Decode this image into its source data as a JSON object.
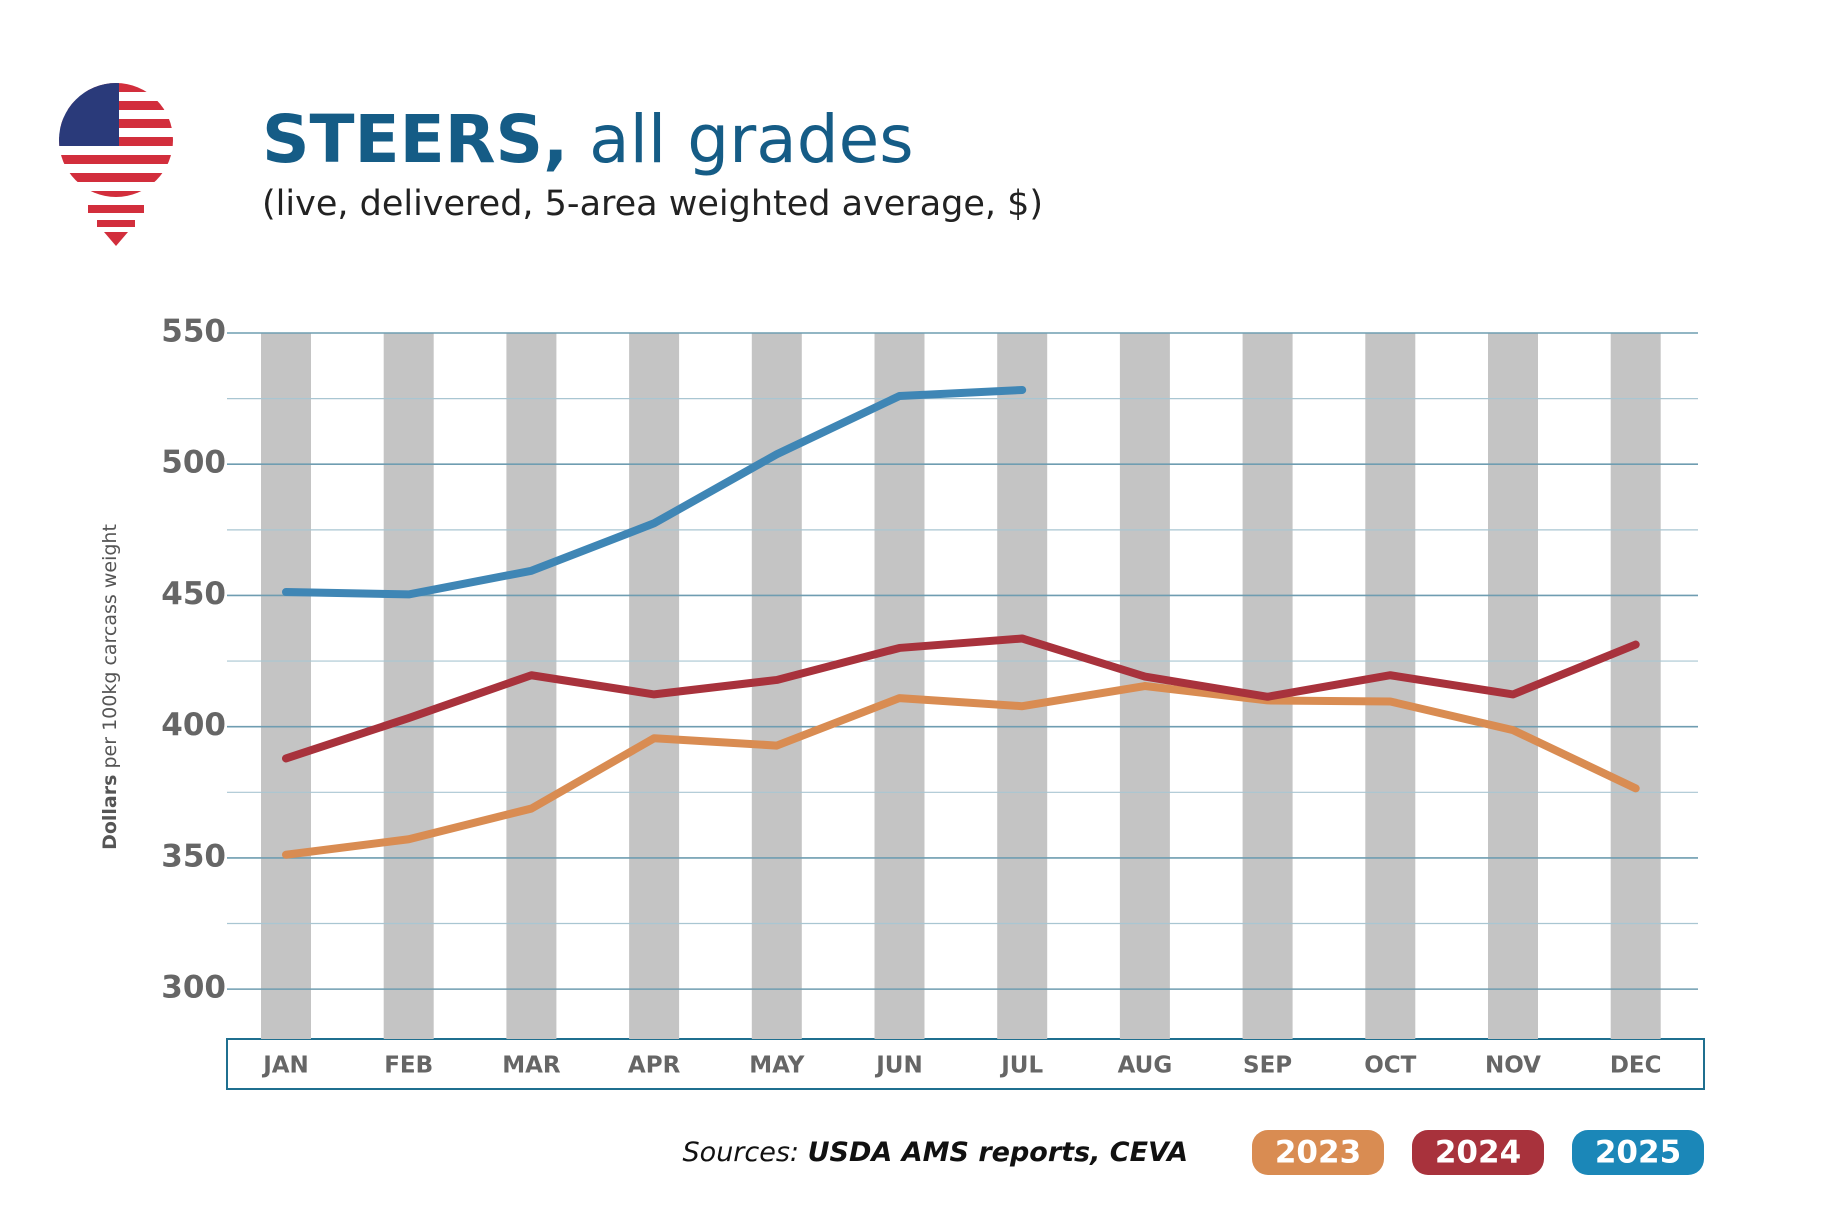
{
  "chart_data": {
    "type": "line",
    "title_bold": "STEERS,",
    "title": "all grades",
    "subtitle": "(live, delivered, 5-area weighted average, $)",
    "ylabel_bold": "Dollars",
    "ylabel": "per 100kg carcass weight",
    "source_label": "Sources:",
    "source": "USDA AMS reports, CEVA",
    "categories": [
      "JAN",
      "FEB",
      "MAR",
      "APR",
      "MAY",
      "JUN",
      "JUL",
      "AUG",
      "SEP",
      "OCT",
      "NOV",
      "DEC"
    ],
    "series": [
      {
        "name": "2023",
        "color": "#d98c52",
        "values": [
          351.2,
          357.1,
          368.8,
          395.6,
          392.8,
          410.9,
          407.8,
          415.5,
          410.0,
          409.6,
          398.7,
          376.5
        ]
      },
      {
        "name": "2024",
        "color": "#a8323c",
        "values": [
          387.9,
          403.3,
          419.6,
          412.3,
          417.8,
          430.0,
          433.6,
          419.1,
          411.4,
          419.6,
          412.3,
          431.3
        ]
      },
      {
        "name": "2025",
        "color": "#3f86b5",
        "values": [
          451.3,
          450.4,
          459.4,
          477.5,
          503.8,
          526.0,
          528.3,
          null,
          null,
          null,
          null,
          null
        ]
      }
    ],
    "legend_colors": [
      "#d98c52",
      "#a8323c",
      "#1b87b8"
    ],
    "ylim": [
      281,
      550
    ],
    "yticks": [
      300,
      350,
      400,
      450,
      500,
      550
    ],
    "minor_yticks": [
      325,
      375,
      425,
      475,
      525
    ],
    "grid": true
  }
}
